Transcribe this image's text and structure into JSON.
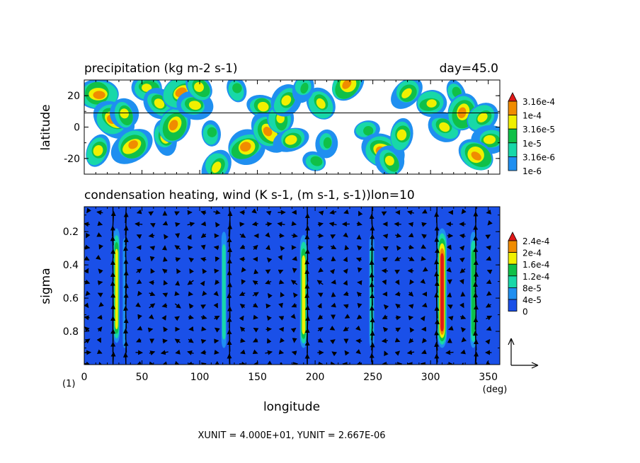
{
  "panel_top": {
    "title": "precipitation (kg m-2 s-1)",
    "time_label": "day=45.0",
    "ylabel": "latitude",
    "colorbar_labels": [
      "3.16e-4",
      "1e-4",
      "3.16e-5",
      "1e-5",
      "3.16e-6",
      "1e-6"
    ],
    "colors": [
      "#e8e8f8",
      "#1f8ff0",
      "#18d8a8",
      "#10c048",
      "#f0f000",
      "#f08c00",
      "#e01818"
    ]
  },
  "panel_bottom": {
    "title": "condensation heating, wind (K s-1, (m s-1, s-1))lon=10",
    "ylabel": "sigma",
    "xlabel": "longitude",
    "x_unit": "(deg)",
    "page_marker": "(1)",
    "colorbar_labels": [
      "2.4e-4",
      "2e-4",
      "1.6e-4",
      "1.2e-4",
      "8e-5",
      "4e-5",
      "0"
    ],
    "colors": [
      "#1a50e8",
      "#1f8ff0",
      "#18d8a8",
      "#10c048",
      "#f0f000",
      "#f08c00",
      "#e01818"
    ],
    "vector_scale_text": "XUNIT = 4.000E+01, YUNIT = 2.667E-06"
  },
  "chart_data": [
    {
      "type": "heatmap",
      "title": "precipitation (kg m-2 s-1)",
      "ylabel": "latitude",
      "xlim": [
        0,
        360
      ],
      "ylim": [
        -30,
        30
      ],
      "yticks": [
        -20,
        0,
        20
      ],
      "reference_line_latitude": 9,
      "levels": [
        1e-06,
        3.16e-06,
        1e-05,
        3.16e-05,
        0.0001,
        0.000316
      ],
      "rain_cells": [
        {
          "lon": 12,
          "lat": 21,
          "v": 3.5
        },
        {
          "lon": 25,
          "lat": 5,
          "v": 4.2
        },
        {
          "lon": 35,
          "lat": 8,
          "v": 3.2
        },
        {
          "lon": 12,
          "lat": -15,
          "v": 3.3
        },
        {
          "lon": 42,
          "lat": -12,
          "v": 4.1
        },
        {
          "lon": 55,
          "lat": 25,
          "v": 2.6
        },
        {
          "lon": 65,
          "lat": 15,
          "v": 3.2
        },
        {
          "lon": 70,
          "lat": -6,
          "v": 3.3
        },
        {
          "lon": 78,
          "lat": 1,
          "v": 4.3
        },
        {
          "lon": 85,
          "lat": 22,
          "v": 3.8
        },
        {
          "lon": 95,
          "lat": 14,
          "v": 3.2
        },
        {
          "lon": 100,
          "lat": 25,
          "v": 2.5
        },
        {
          "lon": 110,
          "lat": -4,
          "v": 2.4
        },
        {
          "lon": 115,
          "lat": -25,
          "v": 2.8
        },
        {
          "lon": 140,
          "lat": -13,
          "v": 3.7
        },
        {
          "lon": 155,
          "lat": 13,
          "v": 3.3
        },
        {
          "lon": 160,
          "lat": -3,
          "v": 4.3
        },
        {
          "lon": 170,
          "lat": 5,
          "v": 2.5
        },
        {
          "lon": 175,
          "lat": 17,
          "v": 2.6
        },
        {
          "lon": 180,
          "lat": -8,
          "v": 2.5
        },
        {
          "lon": 200,
          "lat": -22,
          "v": 2.3
        },
        {
          "lon": 205,
          "lat": 15,
          "v": 3.3
        },
        {
          "lon": 210,
          "lat": -10,
          "v": 2.4
        },
        {
          "lon": 228,
          "lat": 27,
          "v": 3.6
        },
        {
          "lon": 245,
          "lat": -2,
          "v": 2.4
        },
        {
          "lon": 258,
          "lat": -15,
          "v": 4.0
        },
        {
          "lon": 265,
          "lat": -22,
          "v": 3.0
        },
        {
          "lon": 275,
          "lat": -5,
          "v": 3.3
        },
        {
          "lon": 280,
          "lat": 22,
          "v": 2.5
        },
        {
          "lon": 300,
          "lat": 15,
          "v": 3.1
        },
        {
          "lon": 312,
          "lat": 0,
          "v": 2.6
        },
        {
          "lon": 322,
          "lat": 22,
          "v": 2.4
        },
        {
          "lon": 328,
          "lat": 9,
          "v": 4.3
        },
        {
          "lon": 345,
          "lat": 6,
          "v": 3.1
        },
        {
          "lon": 352,
          "lat": -8,
          "v": 2.5
        },
        {
          "lon": 340,
          "lat": -18,
          "v": 3.7
        },
        {
          "lon": 132,
          "lat": 24,
          "v": 2.2
        },
        {
          "lon": 190,
          "lat": 25,
          "v": 2.0
        }
      ]
    },
    {
      "type": "heatmap",
      "title": "condensation heating, wind (K s-1, (m s-1, s-1))lon=10",
      "xlabel": "longitude",
      "ylabel": "sigma",
      "xlim": [
        0,
        360
      ],
      "ylim": [
        1.0,
        0.05
      ],
      "xticks": [
        0,
        50,
        100,
        150,
        200,
        250,
        300,
        350
      ],
      "yticks": [
        0.2,
        0.4,
        0.6,
        0.8
      ],
      "levels": [
        0,
        4e-05,
        8e-05,
        0.00012,
        0.00016,
        0.0002,
        0.00024
      ],
      "heating_columns": [
        {
          "lon": 28,
          "width": 4,
          "sig_top": 0.18,
          "sig_bot": 0.87,
          "peak": 0.000175
        },
        {
          "lon": 35,
          "width": 2,
          "sig_top": 0.24,
          "sig_bot": 0.9,
          "peak": 5e-05
        },
        {
          "lon": 121,
          "width": 3,
          "sig_top": 0.2,
          "sig_bot": 0.9,
          "peak": 0.00011
        },
        {
          "lon": 190,
          "width": 5,
          "sig_top": 0.22,
          "sig_bot": 0.9,
          "peak": 0.00017
        },
        {
          "lon": 249,
          "width": 3,
          "sig_top": 0.22,
          "sig_bot": 0.9,
          "peak": 8e-05
        },
        {
          "lon": 310,
          "width": 7,
          "sig_top": 0.18,
          "sig_bot": 0.9,
          "peak": 0.00026
        },
        {
          "lon": 337,
          "width": 4,
          "sig_top": 0.2,
          "sig_bot": 0.9,
          "peak": 0.00015
        }
      ],
      "wind_vectors": "zonal-vertical wind field: strong upward arrows at heating columns, weak mixed flow elsewhere"
    }
  ]
}
